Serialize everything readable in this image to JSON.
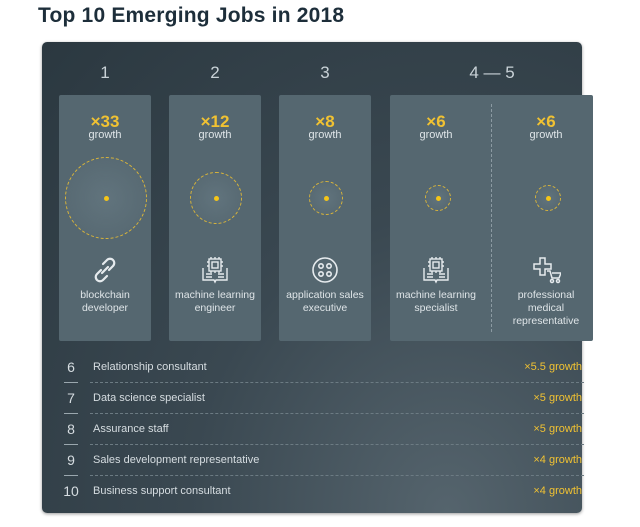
{
  "title": "Top 10 Emerging Jobs in 2018",
  "column_headers": [
    "1",
    "2",
    "3",
    "4 — 5"
  ],
  "top_jobs": [
    {
      "rank": "1",
      "multiplier": "×33",
      "growth_label": "growth",
      "name": "blockchain developer",
      "icon": "chain-link-icon"
    },
    {
      "rank": "2",
      "multiplier": "×12",
      "growth_label": "growth",
      "name": "machine learning engineer",
      "icon": "chip-book-icon"
    },
    {
      "rank": "3",
      "multiplier": "×8",
      "growth_label": "growth",
      "name": "application sales executive",
      "icon": "app-grid-icon"
    },
    {
      "rank": "4",
      "multiplier": "×6",
      "growth_label": "growth",
      "name": "machine learning specialist",
      "icon": "chip-book-icon"
    },
    {
      "rank": "5",
      "multiplier": "×6",
      "growth_label": "growth",
      "name": "professional medical representative",
      "icon": "medical-cart-icon"
    }
  ],
  "other_jobs": [
    {
      "rank": "6",
      "name": "Relationship consultant",
      "growth": "×5.5 growth"
    },
    {
      "rank": "7",
      "name": "Data science specialist",
      "growth": "×5 growth"
    },
    {
      "rank": "8",
      "name": "Assurance staff",
      "growth": "×5 growth"
    },
    {
      "rank": "9",
      "name": "Sales development representative",
      "growth": "×4 growth"
    },
    {
      "rank": "10",
      "name": "Business support consultant",
      "growth": "×4 growth"
    }
  ],
  "colors": {
    "accent": "#f1c232",
    "panel": "#2f3c44",
    "card": "#556770"
  }
}
